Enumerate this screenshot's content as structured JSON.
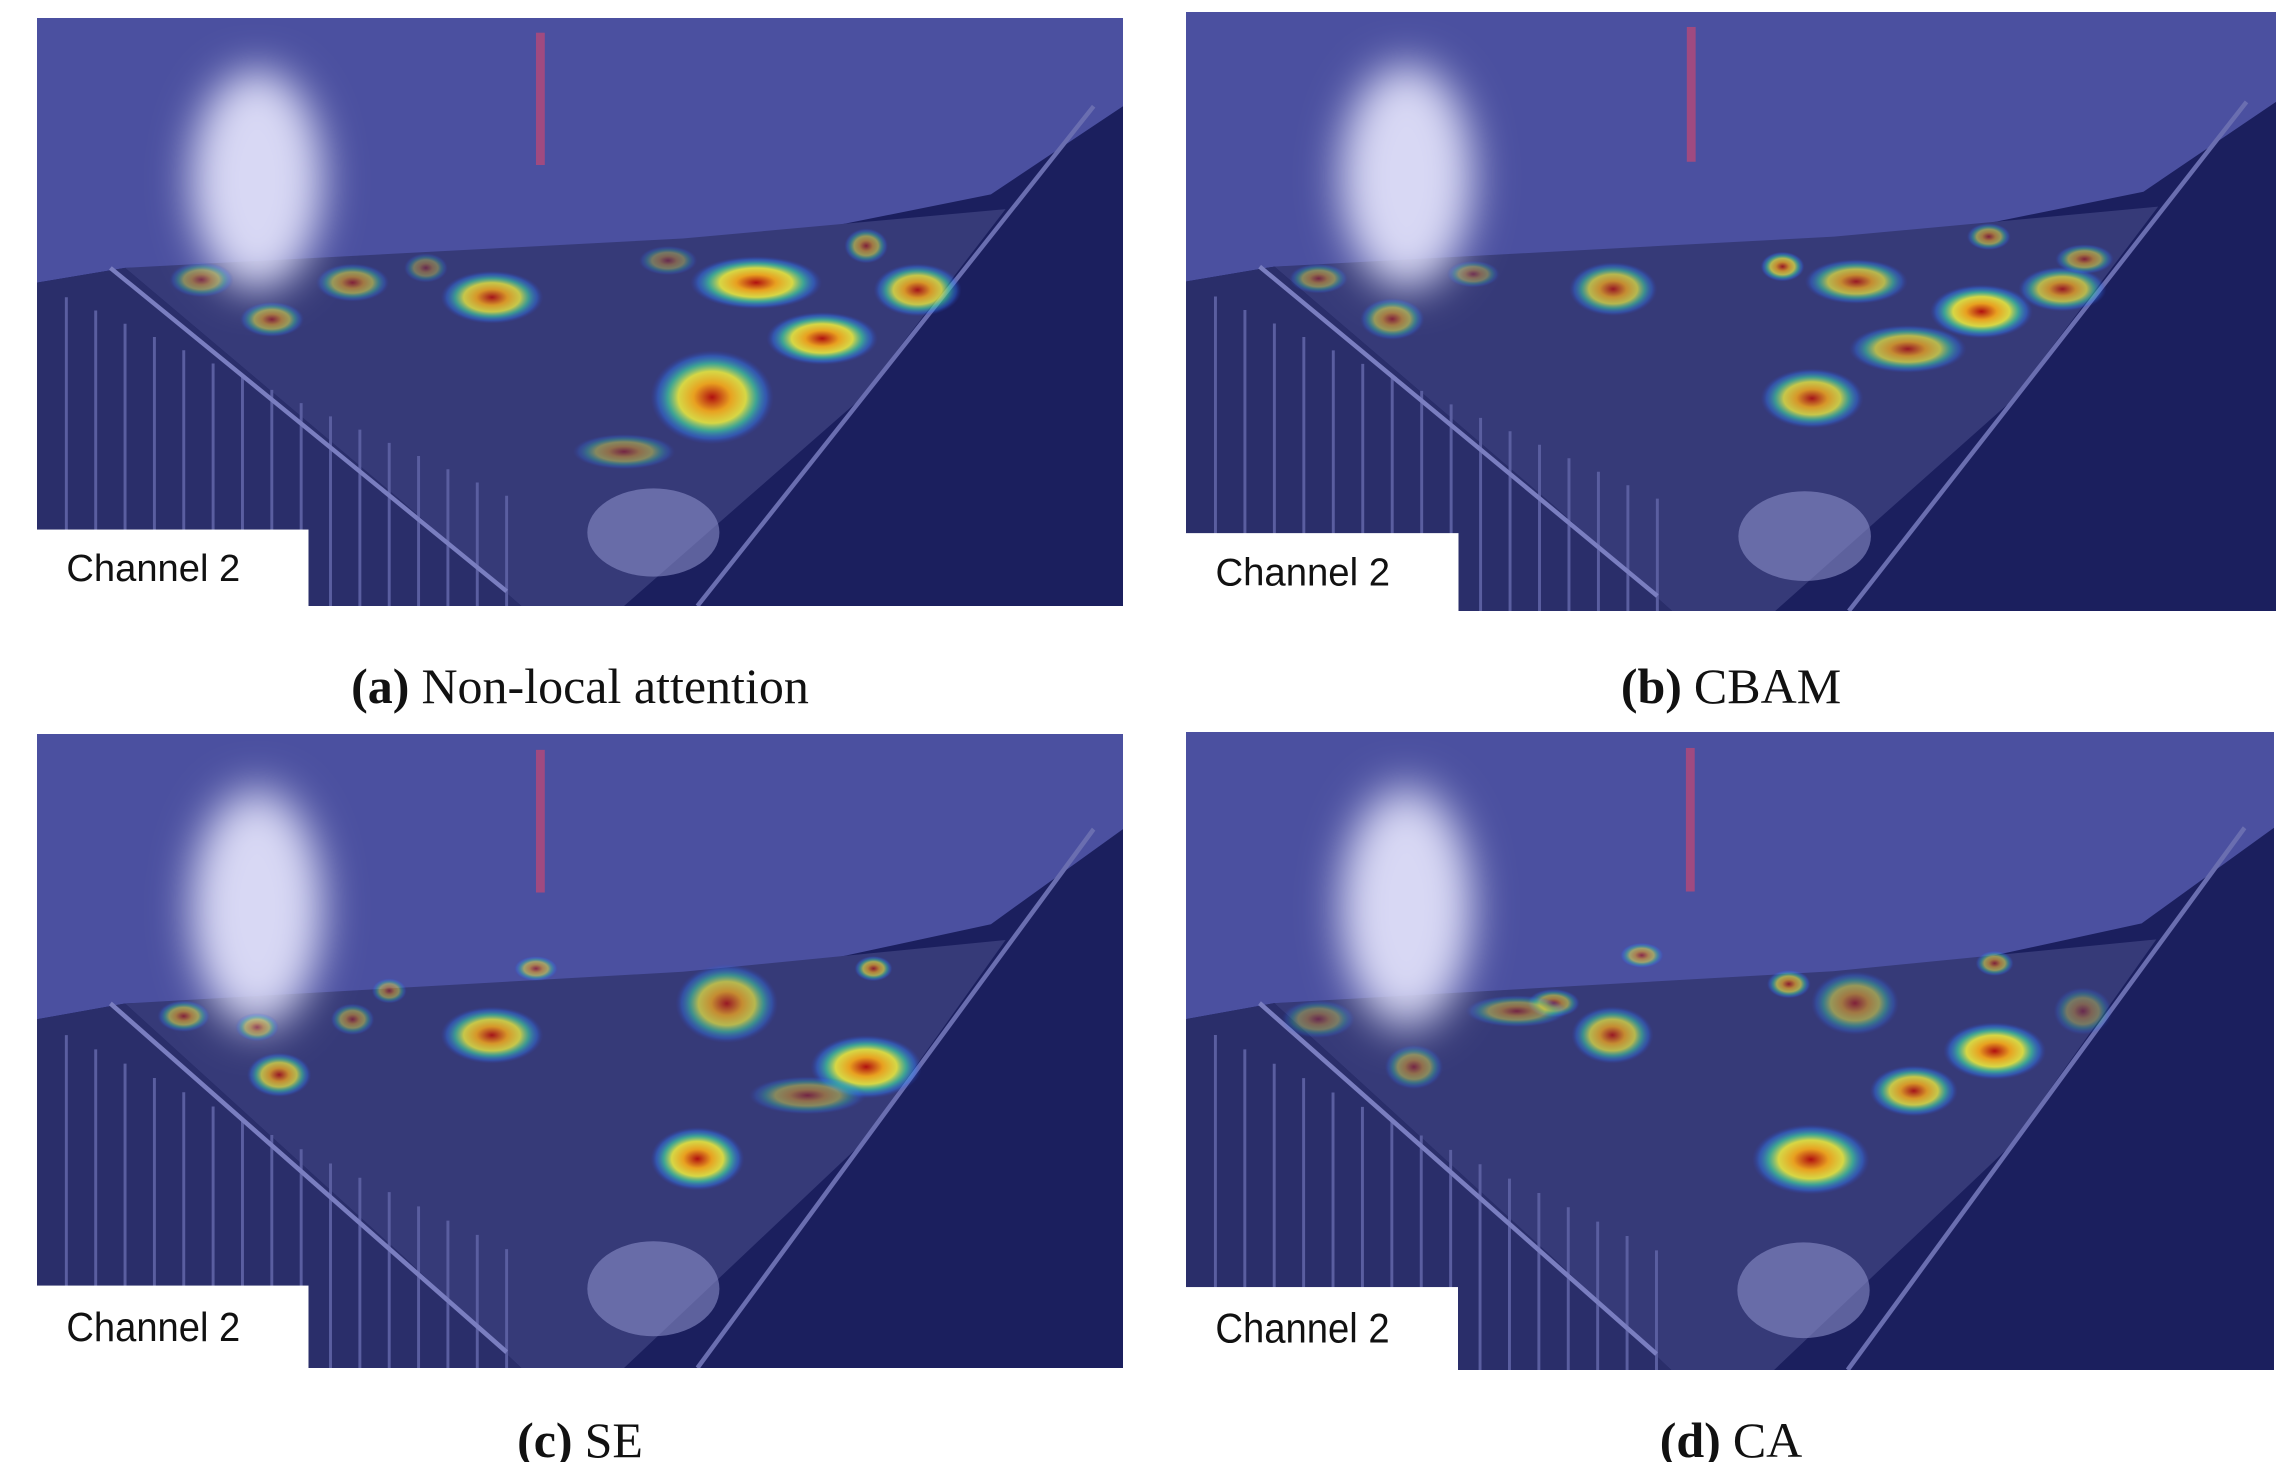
{
  "panels": [
    {
      "label": "(a)",
      "caption": "Non-local attention",
      "overlay_text": "Channel 2"
    },
    {
      "label": "(b)",
      "caption": "CBAM",
      "overlay_text": "Channel 2"
    },
    {
      "label": "(c)",
      "caption": "SE",
      "overlay_text": "Channel 2"
    },
    {
      "label": "(d)",
      "caption": "CA",
      "overlay_text": "Channel 2"
    }
  ]
}
